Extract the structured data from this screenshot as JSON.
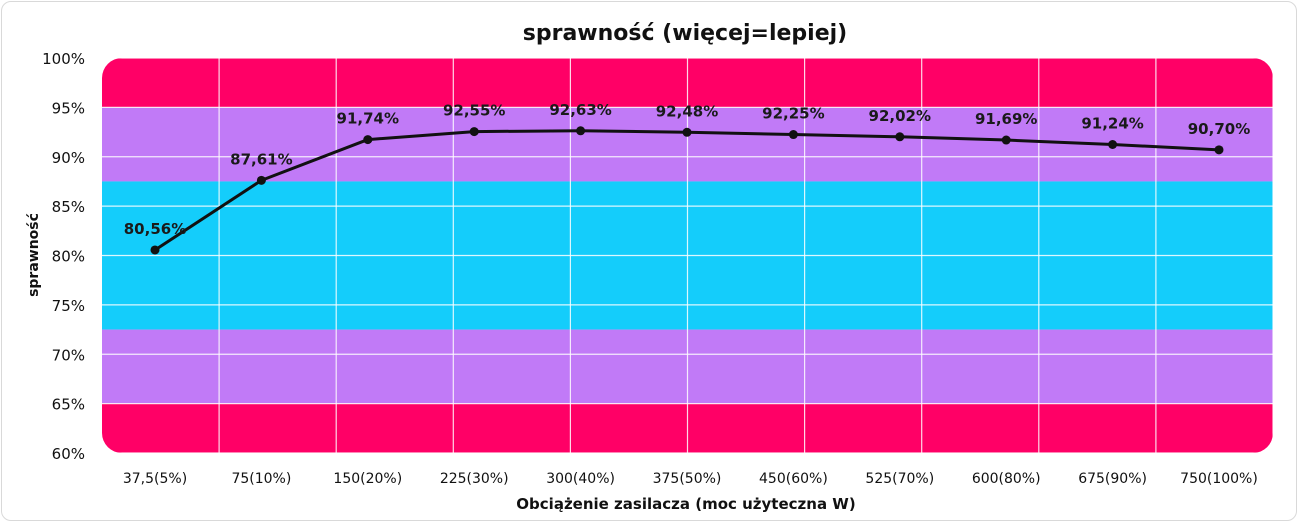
{
  "chart_data": {
    "type": "line",
    "title": "sprawność (więcej=lepiej)",
    "xlabel": "Obciążenie zasilacza (moc użyteczna W)",
    "ylabel": "sprawność",
    "categories": [
      "37,5(5%)",
      "75(10%)",
      "150(20%)",
      "225(30%)",
      "300(40%)",
      "375(50%)",
      "450(60%)",
      "525(70%)",
      "600(80%)",
      "675(90%)",
      "750(100%)"
    ],
    "series": [
      {
        "values": [
          80.56,
          87.61,
          91.74,
          92.55,
          92.63,
          92.48,
          92.25,
          92.02,
          91.69,
          91.24,
          90.7
        ],
        "labels": [
          "80,56%",
          "87,61%",
          "91,74%",
          "92,55%",
          "92,63%",
          "92,48%",
          "92,25%",
          "92,02%",
          "91,69%",
          "91,24%",
          "90,70%"
        ],
        "color": "#111111"
      }
    ],
    "ylim": [
      60,
      100
    ],
    "yticks": [
      60,
      65,
      70,
      75,
      80,
      85,
      90,
      95,
      100
    ],
    "ytick_labels": [
      "60%",
      "65%",
      "70%",
      "75%",
      "80%",
      "85%",
      "90%",
      "95%",
      "100%"
    ],
    "grid": true,
    "bands": [
      {
        "from": 95,
        "to": 100,
        "color": "#ff0066"
      },
      {
        "from": 87.5,
        "to": 95,
        "color": "#c17af7"
      },
      {
        "from": 72.5,
        "to": 87.5,
        "color": "#14cdfb"
      },
      {
        "from": 65,
        "to": 72.5,
        "color": "#c17af7"
      },
      {
        "from": 60,
        "to": 65,
        "color": "#ff0066"
      }
    ]
  }
}
